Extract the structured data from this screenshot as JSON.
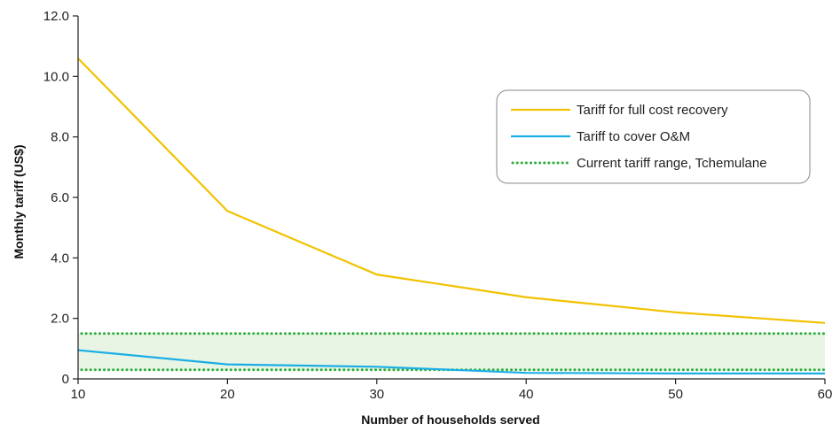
{
  "chart_data": {
    "type": "line",
    "title": "",
    "xlabel": "Number of households served",
    "ylabel": "Monthly tariff (US$)",
    "xlim": [
      10,
      60
    ],
    "ylim": [
      0,
      12
    ],
    "x_ticks": [
      "10",
      "20",
      "30",
      "40",
      "50",
      "60"
    ],
    "x_tick_values": [
      10,
      20,
      30,
      40,
      50,
      60
    ],
    "y_ticks": [
      "0",
      "2.0",
      "4.0",
      "6.0",
      "8.0",
      "10.0",
      "12.0"
    ],
    "y_tick_values": [
      0,
      2,
      4,
      6,
      8,
      10,
      12
    ],
    "grid": false,
    "legend_position": "top-right",
    "series": [
      {
        "name": "Tariff for full cost recovery",
        "color": "#F2C200",
        "style": "solid",
        "x": [
          10,
          20,
          30,
          40,
          50,
          60
        ],
        "values": [
          10.6,
          5.55,
          3.45,
          2.7,
          2.2,
          1.85
        ]
      },
      {
        "name": "Tariff to cover O&M",
        "color": "#1BAEE5",
        "style": "solid",
        "x": [
          10,
          20,
          30,
          40,
          50,
          60
        ],
        "values": [
          0.95,
          0.48,
          0.4,
          0.2,
          0.18,
          0.18
        ]
      },
      {
        "name": "Current tariff range, Tchemulane",
        "color": "#2EAD3E",
        "style": "dotted",
        "range_low": 0.3,
        "range_high": 1.5,
        "fill_color": "#E8F5E4"
      }
    ]
  }
}
